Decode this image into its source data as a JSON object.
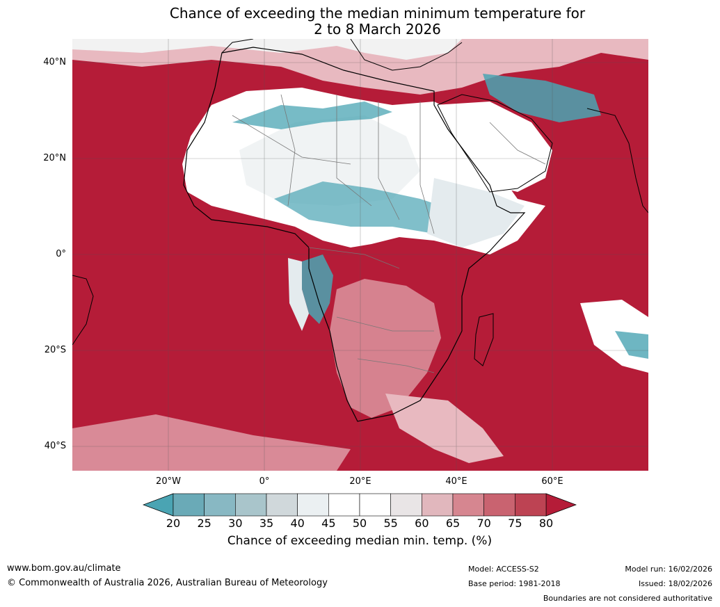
{
  "title": {
    "line1": "Chance of exceeding the median minimum temperature for",
    "line2": "2 to 8 March 2026"
  },
  "map": {
    "lat_labels": [
      "40°N",
      "20°N",
      "0°",
      "20°S",
      "40°S"
    ],
    "lon_labels": [
      "20°W",
      "0°",
      "20°E",
      "40°E",
      "60°E"
    ],
    "colors": {
      "ocean_warm": "#b51c38",
      "land_neutral": "#ffffff",
      "cool": "#4aa4b3",
      "light_cool": "#e4ebee",
      "pink": "#d6828f",
      "light_pink": "#e8b9c0",
      "gridline": "#555555",
      "border": "#777777",
      "coast": "#000000"
    }
  },
  "colorbar": {
    "ticks": [
      "20",
      "25",
      "30",
      "35",
      "40",
      "45",
      "50",
      "55",
      "60",
      "65",
      "70",
      "75",
      "80"
    ],
    "colors": [
      "#6aaab7",
      "#88b8c3",
      "#a9c5cb",
      "#d0d8db",
      "#ebf0f2",
      "#ffffff",
      "#ffffff",
      "#e9e5e6",
      "#e1b7bd",
      "#d68690",
      "#c96370",
      "#bd4353"
    ],
    "under_color": "#4aa4b3",
    "over_color": "#b51c38",
    "label": "Chance of exceeding median min. temp. (%)"
  },
  "footer": {
    "website": "www.bom.gov.au/climate",
    "copyright": "© Commonwealth of Australia 2026, Australian Bureau of Meteorology",
    "model": "Model: ACCESS-S2",
    "base_period": "Base period: 1981-2018",
    "model_run": "Model run: 16/02/2026",
    "issued": "Issued: 18/02/2026",
    "disclaimer": "Boundaries are not considered authoritative"
  }
}
